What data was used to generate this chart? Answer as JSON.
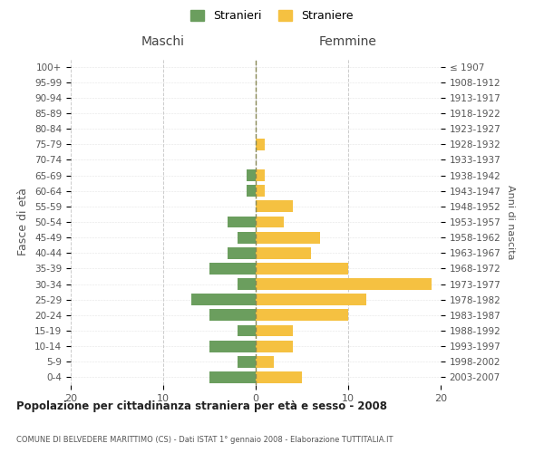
{
  "age_groups": [
    "0-4",
    "5-9",
    "10-14",
    "15-19",
    "20-24",
    "25-29",
    "30-34",
    "35-39",
    "40-44",
    "45-49",
    "50-54",
    "55-59",
    "60-64",
    "65-69",
    "70-74",
    "75-79",
    "80-84",
    "85-89",
    "90-94",
    "95-99",
    "100+"
  ],
  "birth_years": [
    "2003-2007",
    "1998-2002",
    "1993-1997",
    "1988-1992",
    "1983-1987",
    "1978-1982",
    "1973-1977",
    "1968-1972",
    "1963-1967",
    "1958-1962",
    "1953-1957",
    "1948-1952",
    "1943-1947",
    "1938-1942",
    "1933-1937",
    "1928-1932",
    "1923-1927",
    "1918-1922",
    "1913-1917",
    "1908-1912",
    "≤ 1907"
  ],
  "maschi": [
    5,
    2,
    5,
    2,
    5,
    7,
    2,
    5,
    3,
    2,
    3,
    0,
    1,
    1,
    0,
    0,
    0,
    0,
    0,
    0,
    0
  ],
  "femmine": [
    5,
    2,
    4,
    4,
    10,
    12,
    19,
    10,
    6,
    7,
    3,
    4,
    1,
    1,
    0,
    1,
    0,
    0,
    0,
    0,
    0
  ],
  "maschi_color": "#6b9e5e",
  "femmine_color": "#f5c141",
  "background_color": "#ffffff",
  "grid_color": "#cccccc",
  "title": "Popolazione per cittadinanza straniera per età e sesso - 2008",
  "subtitle": "COMUNE DI BELVEDERE MARITTIMO (CS) - Dati ISTAT 1° gennaio 2008 - Elaborazione TUTTITALIA.IT",
  "ylabel": "Fasce di età",
  "ylabel_right": "Anni di nascita",
  "legend_maschi": "Stranieri",
  "legend_femmine": "Straniere",
  "maschi_label": "Maschi",
  "femmine_label": "Femmine",
  "xlim": 20,
  "bar_height": 0.75
}
